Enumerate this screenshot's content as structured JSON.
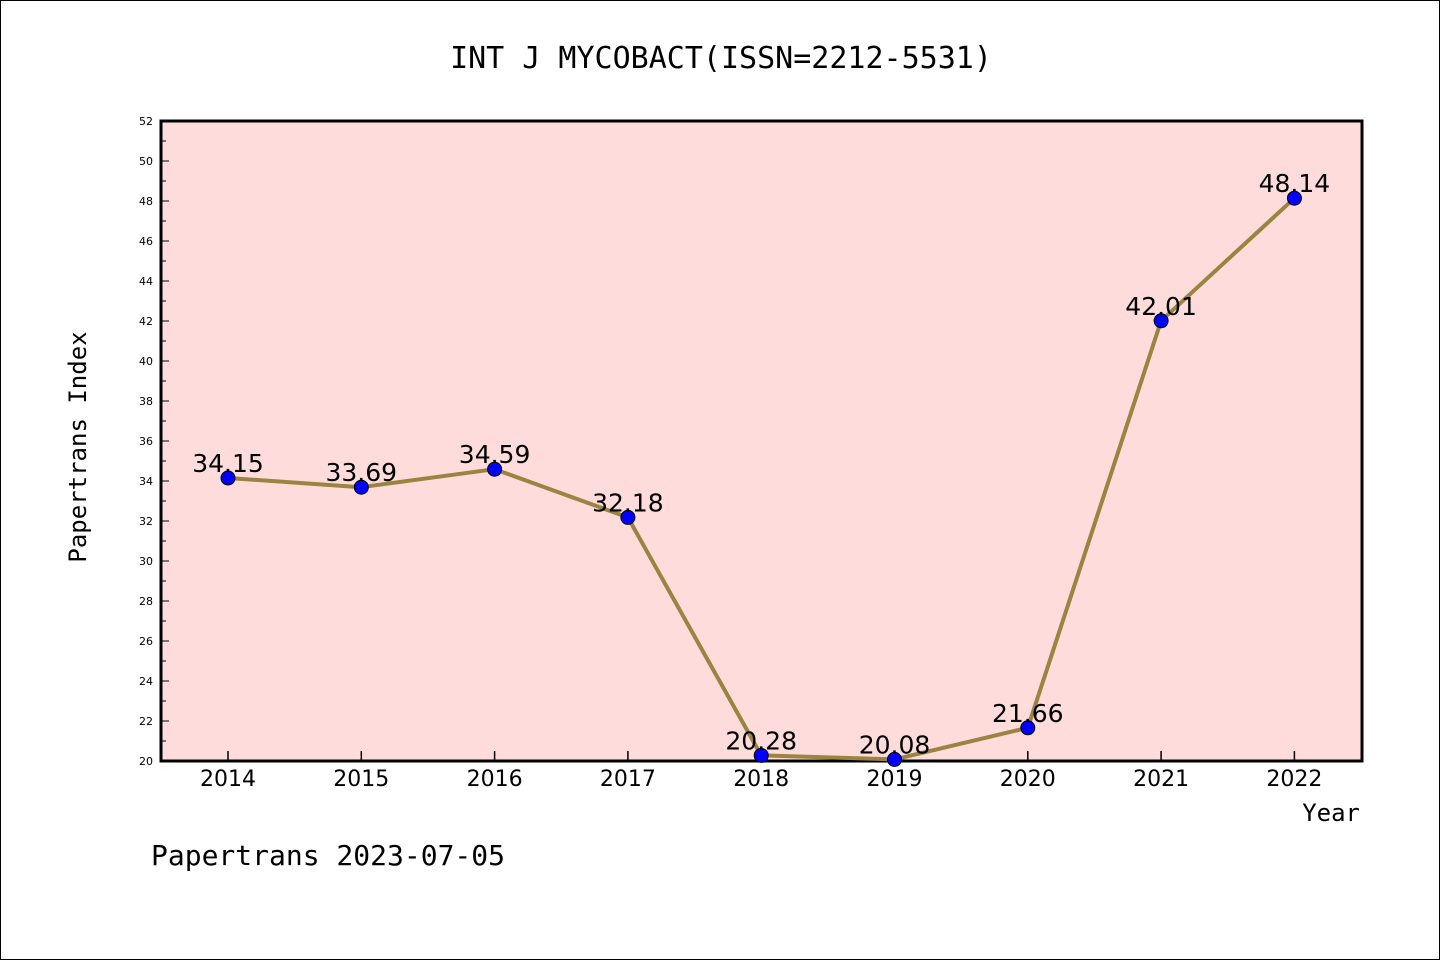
{
  "chart_data": {
    "type": "line",
    "title": "INT J MYCOBACT(ISSN=2212-5531)",
    "xlabel": "Year",
    "ylabel": "Papertrans Index",
    "categories": [
      "2014",
      "2015",
      "2016",
      "2017",
      "2018",
      "2019",
      "2020",
      "2021",
      "2022"
    ],
    "series": [
      {
        "values": [
          34.15,
          33.69,
          34.59,
          32.18,
          20.28,
          20.08,
          21.66,
          42.01,
          48.14
        ],
        "labels": [
          "34.15",
          "33.69",
          "34.59",
          "32.18",
          "20.28",
          "20.08",
          "21.66",
          "42.01",
          "48.14"
        ]
      }
    ],
    "ylim": [
      20,
      52
    ],
    "yticks": [
      "20",
      "22",
      "24",
      "26",
      "28",
      "30",
      "32",
      "34",
      "36",
      "38",
      "40",
      "42",
      "44",
      "46",
      "48",
      "50",
      "52"
    ],
    "grid": false,
    "legend": "none",
    "colors": {
      "plot_background": "#fddcdb",
      "line": "#9a8440",
      "marker": "#0000ff"
    }
  },
  "footer": "Papertrans 2023-07-05"
}
